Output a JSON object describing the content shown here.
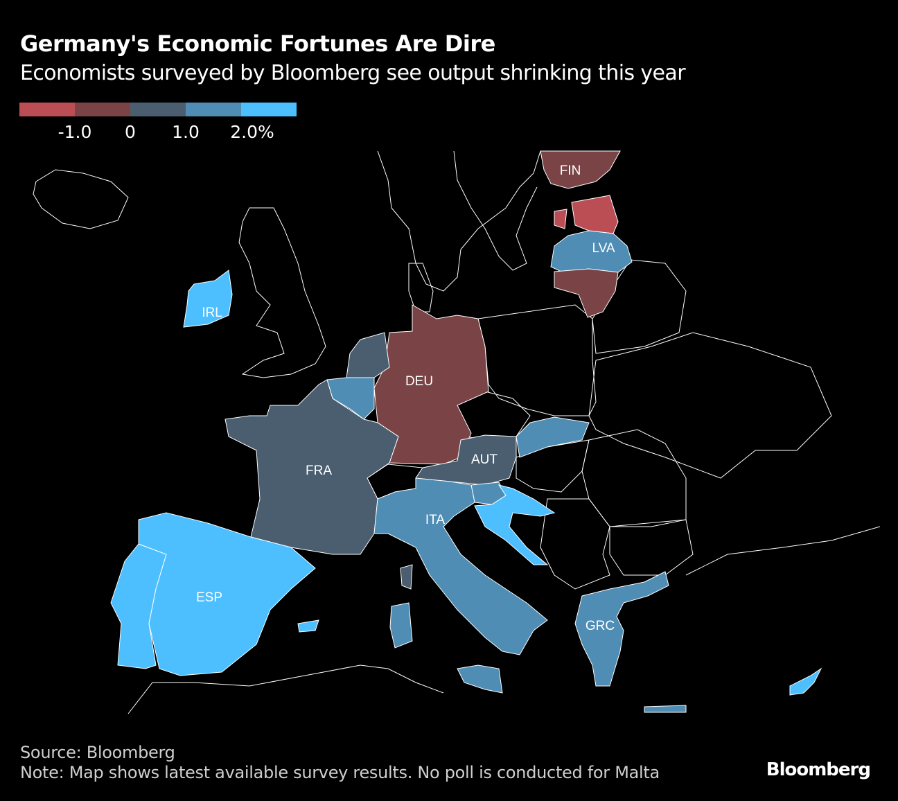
{
  "header": {
    "title": "Germany's Economic Fortunes Are Dire",
    "subtitle": "Economists surveyed by Bloomberg see output shrinking this year"
  },
  "legend": {
    "colors": [
      "#bb4e55",
      "#7a4447",
      "#4a5e70",
      "#4f8db4",
      "#4dbfff"
    ],
    "ticks": [
      "-1.0",
      "0",
      "1.0",
      "2.0%"
    ]
  },
  "map": {
    "no_data_color": "#000000",
    "border_color": "#ffffff",
    "countries": [
      {
        "code": "FIN",
        "label": "FIN",
        "bin": 1
      },
      {
        "code": "EST",
        "label": "",
        "bin": 0
      },
      {
        "code": "LVA",
        "label": "LVA",
        "bin": 3
      },
      {
        "code": "LTU",
        "label": "",
        "bin": 1
      },
      {
        "code": "IRL",
        "label": "IRL",
        "bin": 4
      },
      {
        "code": "DEU",
        "label": "DEU",
        "bin": 1
      },
      {
        "code": "NLD",
        "label": "",
        "bin": 2
      },
      {
        "code": "BEL",
        "label": "",
        "bin": 3
      },
      {
        "code": "FRA",
        "label": "FRA",
        "bin": 2
      },
      {
        "code": "ESP",
        "label": "ESP",
        "bin": 4
      },
      {
        "code": "PRT",
        "label": "",
        "bin": 4
      },
      {
        "code": "AUT",
        "label": "AUT",
        "bin": 2
      },
      {
        "code": "SVK",
        "label": "",
        "bin": 3
      },
      {
        "code": "SVN",
        "label": "",
        "bin": 3
      },
      {
        "code": "HRV",
        "label": "",
        "bin": 4
      },
      {
        "code": "ITA",
        "label": "ITA",
        "bin": 3
      },
      {
        "code": "GRC",
        "label": "GRC",
        "bin": 3
      },
      {
        "code": "CYP",
        "label": "",
        "bin": 4
      }
    ]
  },
  "footer": {
    "source": "Source: Bloomberg",
    "note": "Note: Map shows latest available survey results. No poll is conducted for Malta",
    "logo": "Bloomberg"
  }
}
